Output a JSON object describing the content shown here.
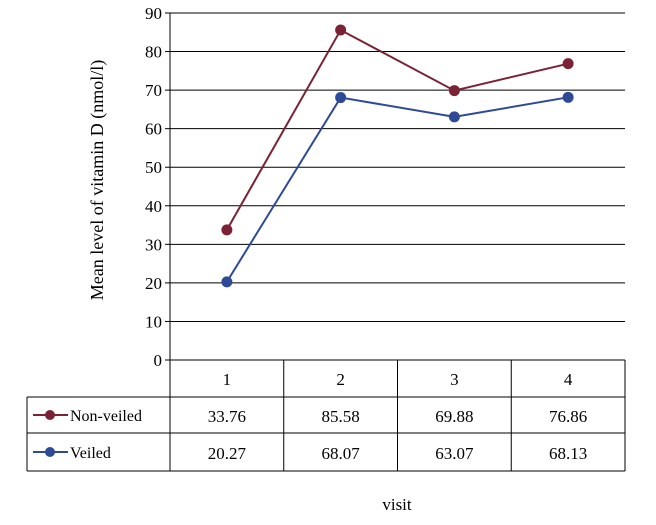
{
  "chart_data": {
    "type": "line",
    "categories": [
      "1",
      "2",
      "3",
      "4"
    ],
    "series": [
      {
        "name": "Non-veiled",
        "values": [
          33.76,
          85.58,
          69.88,
          76.86
        ],
        "color": "#7b2335"
      },
      {
        "name": "Veiled",
        "values": [
          20.27,
          68.07,
          63.07,
          68.13
        ],
        "color": "#2e4a96"
      }
    ],
    "table_values": [
      [
        "33.76",
        "85.58",
        "69.88",
        "76.86"
      ],
      [
        "20.27",
        "68.07",
        "63.07",
        "68.13"
      ]
    ],
    "xlabel": "visit",
    "ylabel": "Mean level of vitamin D (nmol/l)",
    "ylim": [
      0,
      90
    ],
    "yticks": [
      0,
      10,
      20,
      30,
      40,
      50,
      60,
      70,
      80,
      90
    ],
    "grid": true,
    "legend_placement": "data-table"
  }
}
